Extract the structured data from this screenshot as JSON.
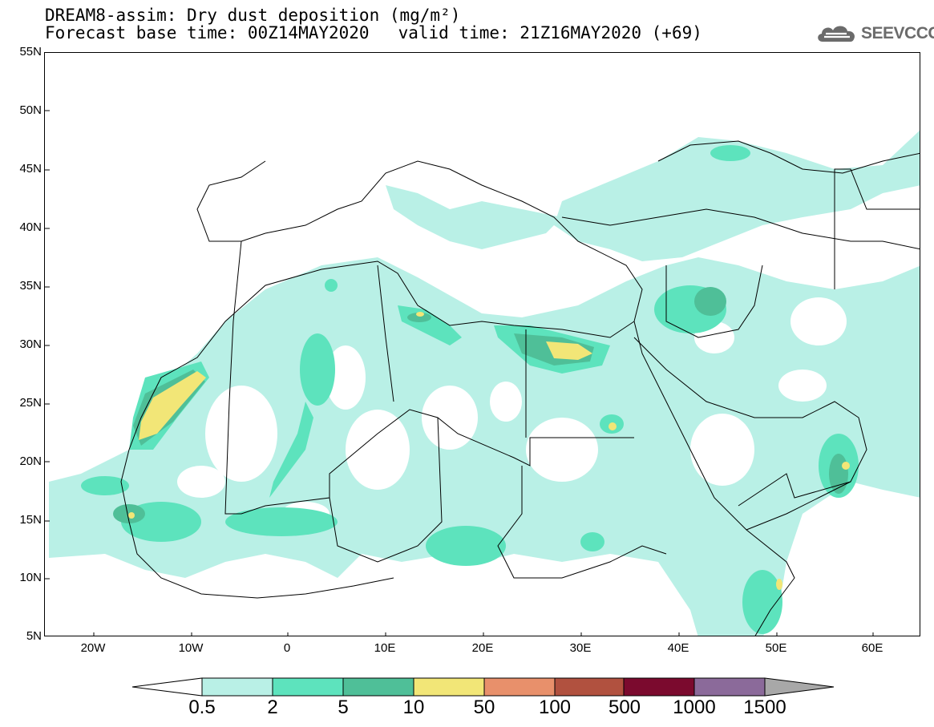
{
  "title": {
    "line1": "DREAM8-assim: Dry dust deposition (mg/m²)",
    "base_time_label": "Forecast base time: 00Z14MAY2020",
    "valid_time_label": "valid time: 21Z16MAY2020 (+69)"
  },
  "logo": {
    "text": "SEEVCCC",
    "icon": "cloud-icon"
  },
  "map": {
    "lat_labels": [
      "55N",
      "50N",
      "45N",
      "40N",
      "35N",
      "30N",
      "25N",
      "20N",
      "15N",
      "10N",
      "5N"
    ],
    "lon_labels": [
      "20W",
      "10W",
      "0",
      "10E",
      "20E",
      "30E",
      "40E",
      "50E",
      "60E"
    ],
    "extent": {
      "lon": [
        -25,
        65
      ],
      "lat": [
        5,
        55
      ]
    }
  },
  "legend": {
    "labels": [
      "0.5",
      "2",
      "5",
      "10",
      "50",
      "100",
      "500",
      "1000",
      "1500"
    ],
    "colors": [
      "#ffffff",
      "#b9f0e6",
      "#5de3bd",
      "#4fbf98",
      "#f2e677",
      "#e8906b",
      "#b1513f",
      "#7b0a2e",
      "#8b6a9a",
      "#a8a8a8"
    ]
  }
}
